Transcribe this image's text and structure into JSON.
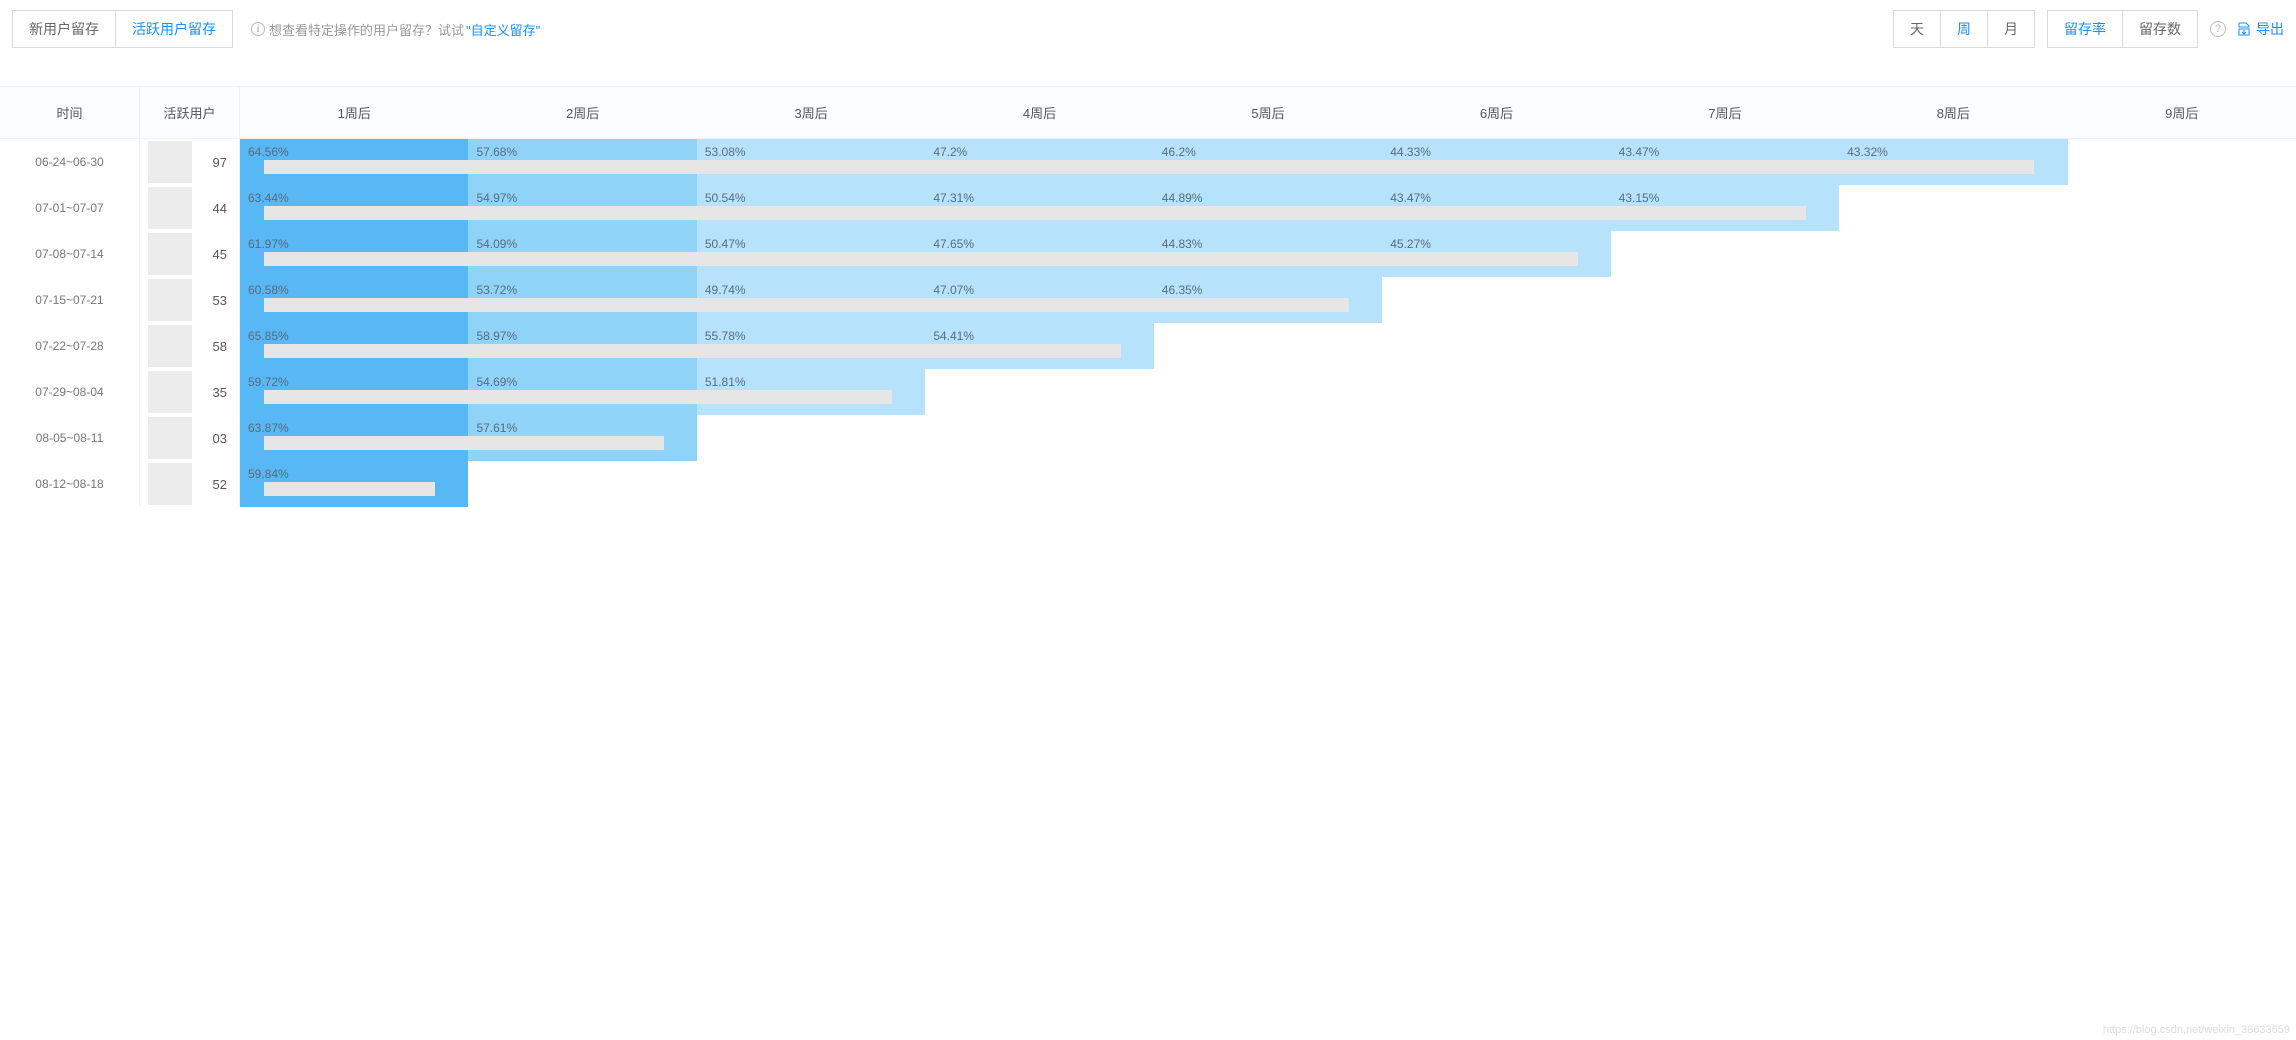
{
  "toolbar": {
    "tab_new_user": "新用户留存",
    "tab_active_user": "活跃用户留存",
    "tab_active_index": 1,
    "hint_prefix": "想查看特定操作的用户留存？试试",
    "hint_link": "\"自定义留存\"",
    "period_group": {
      "day": "天",
      "week": "周",
      "month": "月",
      "active_index": 1
    },
    "metric_group": {
      "rate": "留存率",
      "count": "留存数",
      "active_index": 0
    },
    "export_label": "导出"
  },
  "colors": {
    "primary": "#1890ff",
    "cell_dark": "#58b7f5",
    "cell_mid": "#8fd3f9",
    "cell_light": "#b6e2fc",
    "row_bar": "#e6e6e6",
    "mask": "#ececec",
    "text_muted": "#777",
    "header_bg": "#fafcff"
  },
  "table": {
    "headers": {
      "time": "时间",
      "active_users": "活跃用户",
      "weeks": [
        "1周后",
        "2周后",
        "3周后",
        "4周后",
        "5周后",
        "6周后",
        "7周后",
        "8周后",
        "9周后"
      ]
    },
    "rows": [
      {
        "time": "06-24~06-30",
        "users_tail": "97",
        "bar_end_col": 8,
        "cells": [
          "64.56%",
          "57.68%",
          "53.08%",
          "47.2%",
          "46.2%",
          "44.33%",
          "43.47%",
          "43.32%",
          ""
        ],
        "shades": [
          "dark",
          "mid",
          "light",
          "light",
          "light",
          "light",
          "light",
          "light",
          ""
        ]
      },
      {
        "time": "07-01~07-07",
        "users_tail": "44",
        "bar_end_col": 7,
        "cells": [
          "63.44%",
          "54.97%",
          "50.54%",
          "47.31%",
          "44.89%",
          "43.47%",
          "43.15%",
          "",
          ""
        ],
        "shades": [
          "dark",
          "mid",
          "light",
          "light",
          "light",
          "light",
          "light",
          "",
          ""
        ]
      },
      {
        "time": "07-08~07-14",
        "users_tail": "45",
        "bar_end_col": 6,
        "cells": [
          "61.97%",
          "54.09%",
          "50.47%",
          "47.65%",
          "44.83%",
          "45.27%",
          "",
          "",
          ""
        ],
        "shades": [
          "dark",
          "mid",
          "light",
          "light",
          "light",
          "light",
          "",
          "",
          ""
        ]
      },
      {
        "time": "07-15~07-21",
        "users_tail": "53",
        "bar_end_col": 5,
        "cells": [
          "60.58%",
          "53.72%",
          "49.74%",
          "47.07%",
          "46.35%",
          "",
          "",
          "",
          ""
        ],
        "shades": [
          "dark",
          "mid",
          "light",
          "light",
          "light",
          "",
          "",
          "",
          ""
        ]
      },
      {
        "time": "07-22~07-28",
        "users_tail": "58",
        "bar_end_col": 4,
        "cells": [
          "65.85%",
          "58.97%",
          "55.78%",
          "54.41%",
          "",
          "",
          "",
          "",
          ""
        ],
        "shades": [
          "dark",
          "mid",
          "light",
          "light",
          "",
          "",
          "",
          "",
          ""
        ]
      },
      {
        "time": "07-29~08-04",
        "users_tail": "35",
        "bar_end_col": 3,
        "cells": [
          "59.72%",
          "54.69%",
          "51.81%",
          "",
          "",
          "",
          "",
          "",
          ""
        ],
        "shades": [
          "dark",
          "mid",
          "light",
          "",
          "",
          "",
          "",
          "",
          ""
        ]
      },
      {
        "time": "08-05~08-11",
        "users_tail": "03",
        "bar_end_col": 2,
        "cells": [
          "63.87%",
          "57.61%",
          "",
          "",
          "",
          "",
          "",
          "",
          ""
        ],
        "shades": [
          "dark",
          "mid",
          "",
          "",
          "",
          "",
          "",
          "",
          ""
        ]
      },
      {
        "time": "08-12~08-18",
        "users_tail": "52",
        "bar_end_col": 1,
        "cells": [
          "59.84%",
          "",
          "",
          "",
          "",
          "",
          "",
          "",
          ""
        ],
        "shades": [
          "dark",
          "",
          "",
          "",
          "",
          "",
          "",
          "",
          ""
        ]
      }
    ]
  },
  "watermark": "https://blog.csdn.net/weixin_38633659"
}
